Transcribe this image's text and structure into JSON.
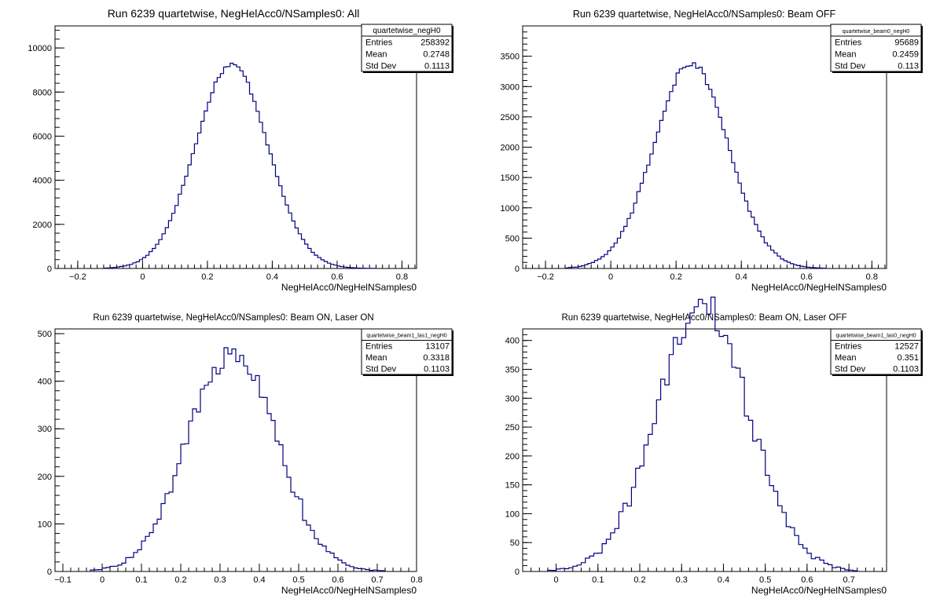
{
  "chart_data": [
    {
      "type": "histogram",
      "title": "Run 6239 quartetwise, NegHelAcc0/NSamples0: All",
      "xlabel": "NegHelAcc0/NegHelNSamples0",
      "xlim": [
        -0.27,
        0.845
      ],
      "ylim": [
        0,
        11000
      ],
      "xticks": [
        -0.2,
        0,
        0.2,
        0.4,
        0.6,
        0.8
      ],
      "yticks": [
        0,
        2000,
        4000,
        6000,
        8000,
        10000
      ],
      "ytick_minor": 400,
      "xtick_minor": 0.02,
      "stats": {
        "name": "quartetwise_negH0",
        "entries": "258392",
        "mean": "0.2748",
        "stddev": "0.1113"
      },
      "gauss": {
        "n": 258392,
        "mean": 0.2748,
        "sigma": 0.1113,
        "binwidth": 0.01,
        "range": [
          -0.12,
          0.72
        ],
        "noise": 0.01
      },
      "color": "#000080"
    },
    {
      "type": "histogram",
      "title": "Run 6239 quartetwise, NegHelAcc0/NSamples0: Beam OFF",
      "xlabel": "NegHelAcc0/NegHelNSamples0",
      "xlim": [
        -0.27,
        0.845
      ],
      "ylim": [
        0,
        4000
      ],
      "xticks": [
        -0.2,
        0,
        0.2,
        0.4,
        0.6,
        0.8
      ],
      "yticks": [
        0,
        500,
        1000,
        1500,
        2000,
        2500,
        3000,
        3500
      ],
      "ytick_minor": 100,
      "xtick_minor": 0.02,
      "stats": {
        "name": "quartetwise_beam0_negH0",
        "entries": "95689",
        "mean": "0.2459",
        "stddev": "0.113"
      },
      "gauss": {
        "n": 95689,
        "mean": 0.2459,
        "sigma": 0.113,
        "binwidth": 0.01,
        "range": [
          -0.14,
          0.66
        ],
        "noise": 0.02
      },
      "color": "#000080"
    },
    {
      "type": "histogram",
      "title": "Run 6239 quartetwise, NegHelAcc0/NSamples0: Beam ON, Laser ON",
      "xlabel": "NegHelAcc0/NegHelNSamples0",
      "xlim": [
        -0.12,
        0.8
      ],
      "ylim": [
        0,
        510
      ],
      "xticks": [
        -0.1,
        0,
        0.1,
        0.2,
        0.3,
        0.4,
        0.5,
        0.6,
        0.7,
        0.8
      ],
      "yticks": [
        0,
        100,
        200,
        300,
        400,
        500
      ],
      "ytick_minor": 20,
      "xtick_minor": 0.02,
      "stats": {
        "name": "quartetwise_beam1_las1_negH0",
        "entries": "13107",
        "mean": "0.3318",
        "stddev": "0.1103"
      },
      "gauss": {
        "n": 13107,
        "mean": 0.3318,
        "sigma": 0.1103,
        "binwidth": 0.01,
        "range": [
          -0.03,
          0.72
        ],
        "noise": 0.06
      },
      "color": "#000080"
    },
    {
      "type": "histogram",
      "title": "Run 6239 quartetwise, NegHelAcc0/NSamples0: Beam ON, Laser OFF",
      "xlabel": "NegHelAcc0/NegHelNSamples0",
      "xlim": [
        -0.08,
        0.79
      ],
      "ylim": [
        0,
        420
      ],
      "xticks": [
        0,
        0.1,
        0.2,
        0.3,
        0.4,
        0.5,
        0.6,
        0.7
      ],
      "yticks": [
        0,
        50,
        100,
        150,
        200,
        250,
        300,
        350,
        400
      ],
      "ytick_minor": 10,
      "xtick_minor": 0.02,
      "stats": {
        "name": "quartetwise_beam1_las0_negH0",
        "entries": "12527",
        "mean": "0.351",
        "stddev": "0.1103"
      },
      "gauss": {
        "n": 12527,
        "mean": 0.351,
        "sigma": 0.1103,
        "binwidth": 0.01,
        "range": [
          -0.02,
          0.72
        ],
        "noise": 0.07
      },
      "color": "#000080"
    }
  ],
  "labels": {
    "entries": "Entries",
    "mean": "Mean",
    "stddev": "Std Dev"
  }
}
